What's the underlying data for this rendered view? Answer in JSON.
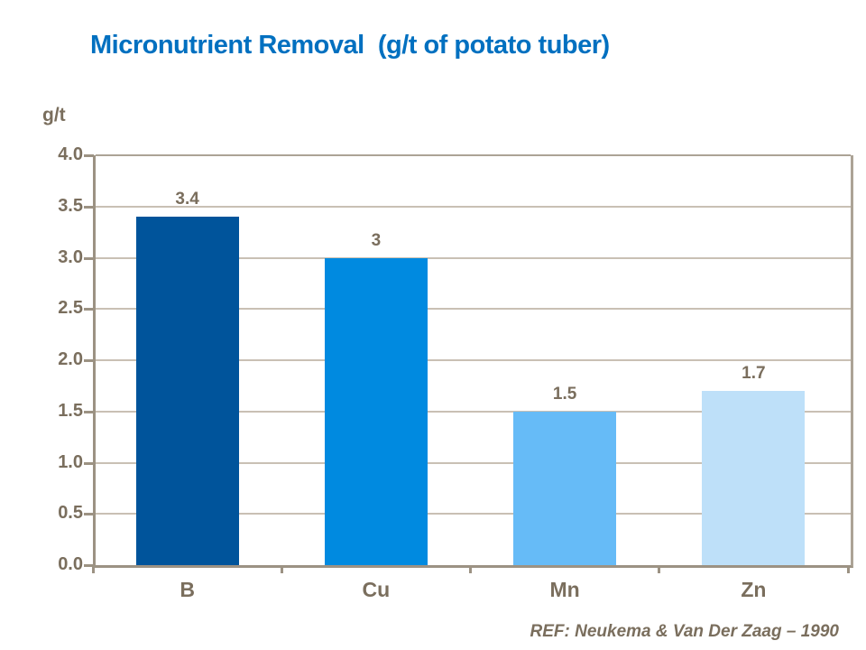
{
  "header": {
    "title": "Micronutrient Removal  (g/t of potato tuber)",
    "title_color": "#0070C0"
  },
  "chart_data": {
    "type": "bar",
    "title": "Micronutrient Removal (g/t of potato tuber)",
    "ylabel": "g/t",
    "xlabel": "",
    "categories": [
      "B",
      "Cu",
      "Mn",
      "Zn"
    ],
    "values": [
      3.4,
      3,
      1.5,
      1.7
    ],
    "value_labels": [
      "3.4",
      "3",
      "1.5",
      "1.7"
    ],
    "bar_colors": [
      "#00549B",
      "#008AE0",
      "#66BBF7",
      "#BEE0F9"
    ],
    "ylim": [
      0,
      4
    ],
    "ytick_step": 0.5,
    "yticks": [
      "4.0",
      "3.5",
      "3.0",
      "2.5",
      "2.0",
      "1.5",
      "1.0",
      "0.5",
      "0.0"
    ],
    "grid": true,
    "legend_position": "none"
  },
  "footer": {
    "reference": "REF: Neukema & Van Der Zaag – 1990"
  },
  "colors": {
    "text": "#7A6E5D",
    "axis": "#9C9283",
    "axis_light": "#ACA396",
    "gridline": "#C9C0B4",
    "background": "#FFFFFF"
  }
}
